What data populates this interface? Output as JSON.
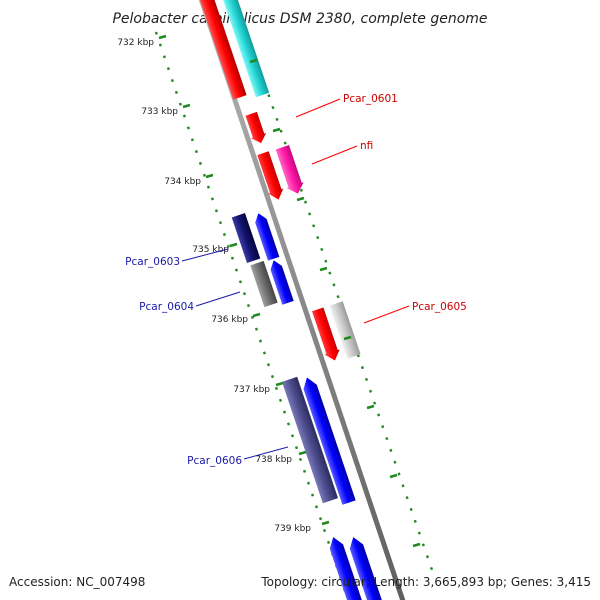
{
  "title": "Pelobacter carbinolicus DSM 2380, complete genome",
  "footer": {
    "accession": "Accession: NC_007498",
    "summary": "Topology: circular; Length: 3,665,893 bp; Genes: 3,415"
  },
  "colors": {
    "backbone": "#8a8a8a",
    "tick": "#1f8a1f",
    "label_red": "#cc0000",
    "label_blue": "#1a1aa8"
  },
  "ticks": [
    {
      "label": "732 kbp"
    },
    {
      "label": "733 kbp"
    },
    {
      "label": "734 kbp"
    },
    {
      "label": "735 kbp"
    },
    {
      "label": "736 kbp"
    },
    {
      "label": "737 kbp"
    },
    {
      "label": "738 kbp"
    },
    {
      "label": "739 kbp"
    }
  ],
  "gene_labels": [
    {
      "name": "Pcar_0601",
      "strand": "+"
    },
    {
      "name": "nfi",
      "strand": "+"
    },
    {
      "name": "Pcar_0603",
      "strand": "-"
    },
    {
      "name": "Pcar_0604",
      "strand": "-"
    },
    {
      "name": "Pcar_0605",
      "strand": "+"
    },
    {
      "name": "Pcar_0606",
      "strand": "-"
    }
  ]
}
